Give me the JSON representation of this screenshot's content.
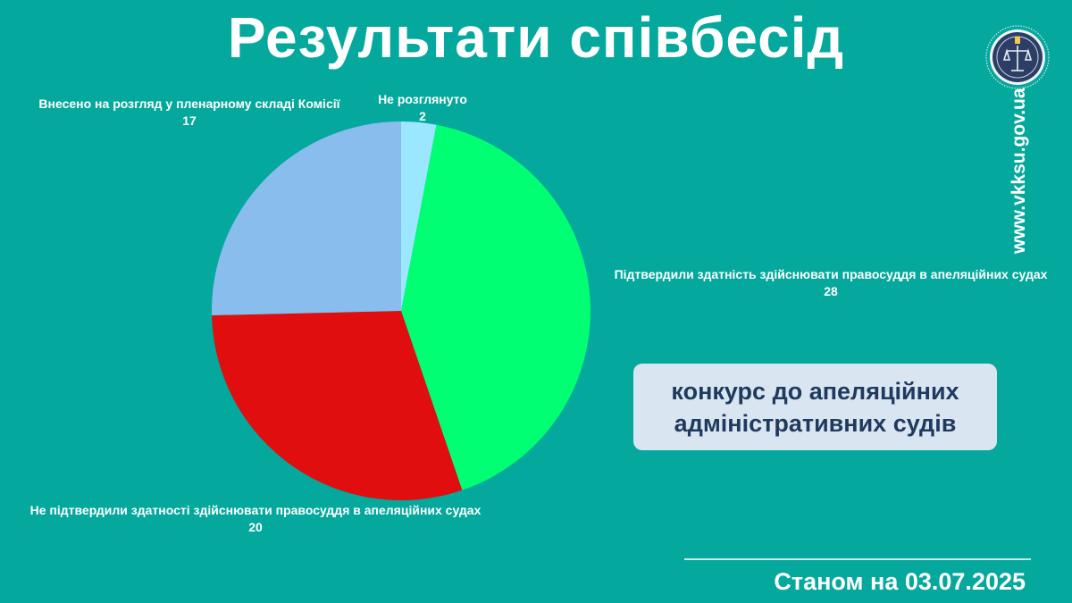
{
  "title": "Результати співбесід",
  "website": "www.vkksu.gov.ua",
  "contest_box": {
    "line1": "конкурс до апеляційних",
    "line2": "адміністративних судів"
  },
  "status_date": "Станом на 03.07.2025",
  "colors": {
    "background": "#05A89C",
    "box": "#D9E5F0",
    "box_text": "#1F3A5F"
  },
  "logo_icon": "vkksu-emblem-icon",
  "chart_data": {
    "type": "pie",
    "title": "Результати співбесід",
    "start_angle_deg": 0,
    "direction": "clockwise",
    "legend": "none",
    "slices": [
      {
        "label": "Не розглянуто",
        "value": 2,
        "color": "#9BE7FF"
      },
      {
        "label": "Підтвердили здатність здійснювати правосуддя в апеляційних судах",
        "value": 28,
        "color": "#00FF73"
      },
      {
        "label": "Не підтвердили здатності здійснювати правосуддя в апеляційних судах",
        "value": 20,
        "color": "#E00E0E"
      },
      {
        "label": "Внесено на розгляд у пленарному складі Комісії",
        "value": 17,
        "color": "#88BDEE"
      }
    ]
  }
}
